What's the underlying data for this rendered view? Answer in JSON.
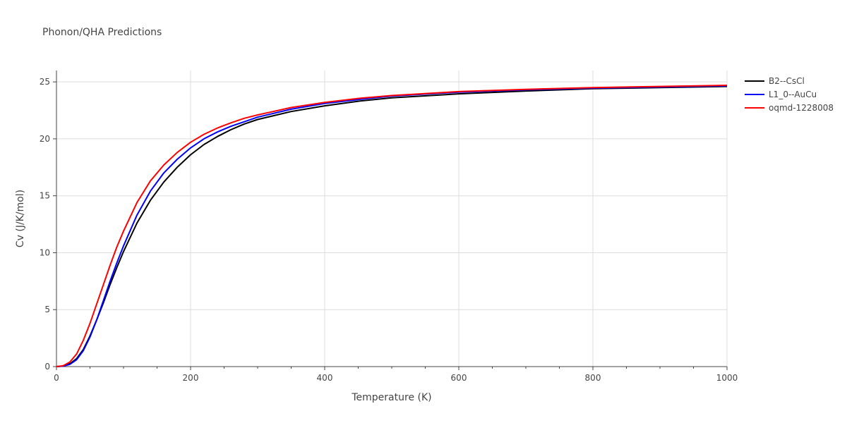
{
  "chart_data": {
    "type": "line",
    "title": "Phonon/QHA Predictions",
    "xlabel": "Temperature (K)",
    "ylabel": "Cv (J/K/mol)",
    "xlim": [
      0,
      1000
    ],
    "ylim": [
      0,
      26
    ],
    "x_ticks": [
      0,
      200,
      400,
      600,
      800,
      1000
    ],
    "y_ticks": [
      0,
      5,
      10,
      15,
      20,
      25
    ],
    "grid": true,
    "legend_position": "top-right",
    "series": [
      {
        "name": "B2--CsCl",
        "color": "#000000",
        "x": [
          0,
          10,
          20,
          30,
          40,
          50,
          60,
          70,
          80,
          90,
          100,
          120,
          140,
          160,
          180,
          200,
          220,
          240,
          260,
          280,
          300,
          350,
          400,
          450,
          500,
          600,
          700,
          800,
          900,
          1000
        ],
        "y": [
          0,
          0.05,
          0.25,
          0.7,
          1.5,
          2.7,
          4.1,
          5.6,
          7.2,
          8.7,
          10.1,
          12.6,
          14.6,
          16.2,
          17.5,
          18.6,
          19.5,
          20.2,
          20.8,
          21.3,
          21.7,
          22.4,
          22.9,
          23.3,
          23.6,
          23.95,
          24.2,
          24.4,
          24.5,
          24.6
        ]
      },
      {
        "name": "L1_0--AuCu",
        "color": "#0000ff",
        "x": [
          0,
          10,
          20,
          30,
          40,
          50,
          60,
          70,
          80,
          90,
          100,
          120,
          140,
          160,
          180,
          200,
          220,
          240,
          260,
          280,
          300,
          350,
          400,
          450,
          500,
          600,
          700,
          800,
          900,
          1000
        ],
        "y": [
          0,
          0.04,
          0.2,
          0.6,
          1.4,
          2.6,
          4.1,
          5.8,
          7.5,
          9.1,
          10.6,
          13.3,
          15.4,
          17.0,
          18.2,
          19.2,
          20.0,
          20.6,
          21.1,
          21.5,
          21.9,
          22.6,
          23.1,
          23.45,
          23.75,
          24.1,
          24.3,
          24.45,
          24.55,
          24.65
        ]
      },
      {
        "name": "oqmd-1228008",
        "color": "#ff0000",
        "x": [
          0,
          10,
          20,
          30,
          40,
          50,
          60,
          70,
          80,
          90,
          100,
          120,
          140,
          160,
          180,
          200,
          220,
          240,
          260,
          280,
          300,
          350,
          400,
          450,
          500,
          600,
          700,
          800,
          900,
          1000
        ],
        "y": [
          0,
          0.08,
          0.4,
          1.1,
          2.3,
          3.8,
          5.5,
          7.2,
          8.9,
          10.5,
          11.9,
          14.4,
          16.3,
          17.7,
          18.8,
          19.7,
          20.4,
          20.95,
          21.4,
          21.8,
          22.1,
          22.75,
          23.2,
          23.55,
          23.8,
          24.15,
          24.35,
          24.5,
          24.6,
          24.7
        ]
      }
    ]
  }
}
